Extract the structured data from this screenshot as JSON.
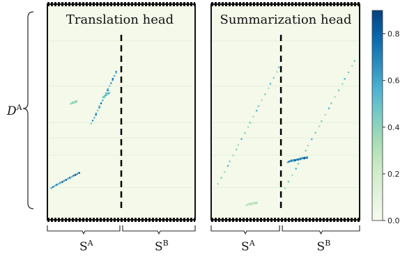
{
  "chart_data": [
    {
      "type": "heatmap",
      "title": "Translation head",
      "ylabel": "D",
      "ylabel_superscript": "A",
      "x_groups": [
        {
          "label": "S",
          "superscript": "A"
        },
        {
          "label": "S",
          "superscript": "B"
        }
      ],
      "divider_at_fraction": 0.5,
      "high_attention_segments": [
        {
          "x": [
            0.03,
            0.22
          ],
          "y": [
            0.85,
            0.78
          ],
          "value": 0.85
        },
        {
          "x": [
            0.3,
            0.47
          ],
          "y": [
            0.55,
            0.31
          ],
          "value": 0.75
        },
        {
          "x": [
            0.38,
            0.42
          ],
          "y": [
            0.43,
            0.41
          ],
          "value": 0.6
        },
        {
          "x": [
            0.16,
            0.2
          ],
          "y": [
            0.46,
            0.45
          ],
          "value": 0.45
        }
      ]
    },
    {
      "type": "heatmap",
      "title": "Summarization head",
      "ylabel": "D",
      "ylabel_superscript": "A",
      "x_groups": [
        {
          "label": "S",
          "superscript": "A"
        },
        {
          "label": "S",
          "superscript": "B"
        }
      ],
      "divider_at_fraction": 0.47,
      "high_attention_segments": [
        {
          "x": [
            0.05,
            0.46
          ],
          "y": [
            0.83,
            0.29
          ],
          "value": 0.55
        },
        {
          "x": [
            0.5,
            0.97
          ],
          "y": [
            0.85,
            0.26
          ],
          "value": 0.55
        },
        {
          "x": [
            0.52,
            0.65
          ],
          "y": [
            0.73,
            0.71
          ],
          "value": 0.9
        },
        {
          "x": [
            0.24,
            0.31
          ],
          "y": [
            0.93,
            0.92
          ],
          "value": 0.35
        }
      ]
    }
  ],
  "colorbar": {
    "min": 0.0,
    "max": 0.9,
    "ticks": [
      "0.0",
      "0.2",
      "0.4",
      "0.6",
      "0.8"
    ],
    "colors": [
      "#f7fcf0",
      "#e0f3db",
      "#ccebc5",
      "#a8ddb5",
      "#7bccc4",
      "#4eb3d3",
      "#2b8cbe",
      "#0868ac",
      "#084081"
    ]
  }
}
